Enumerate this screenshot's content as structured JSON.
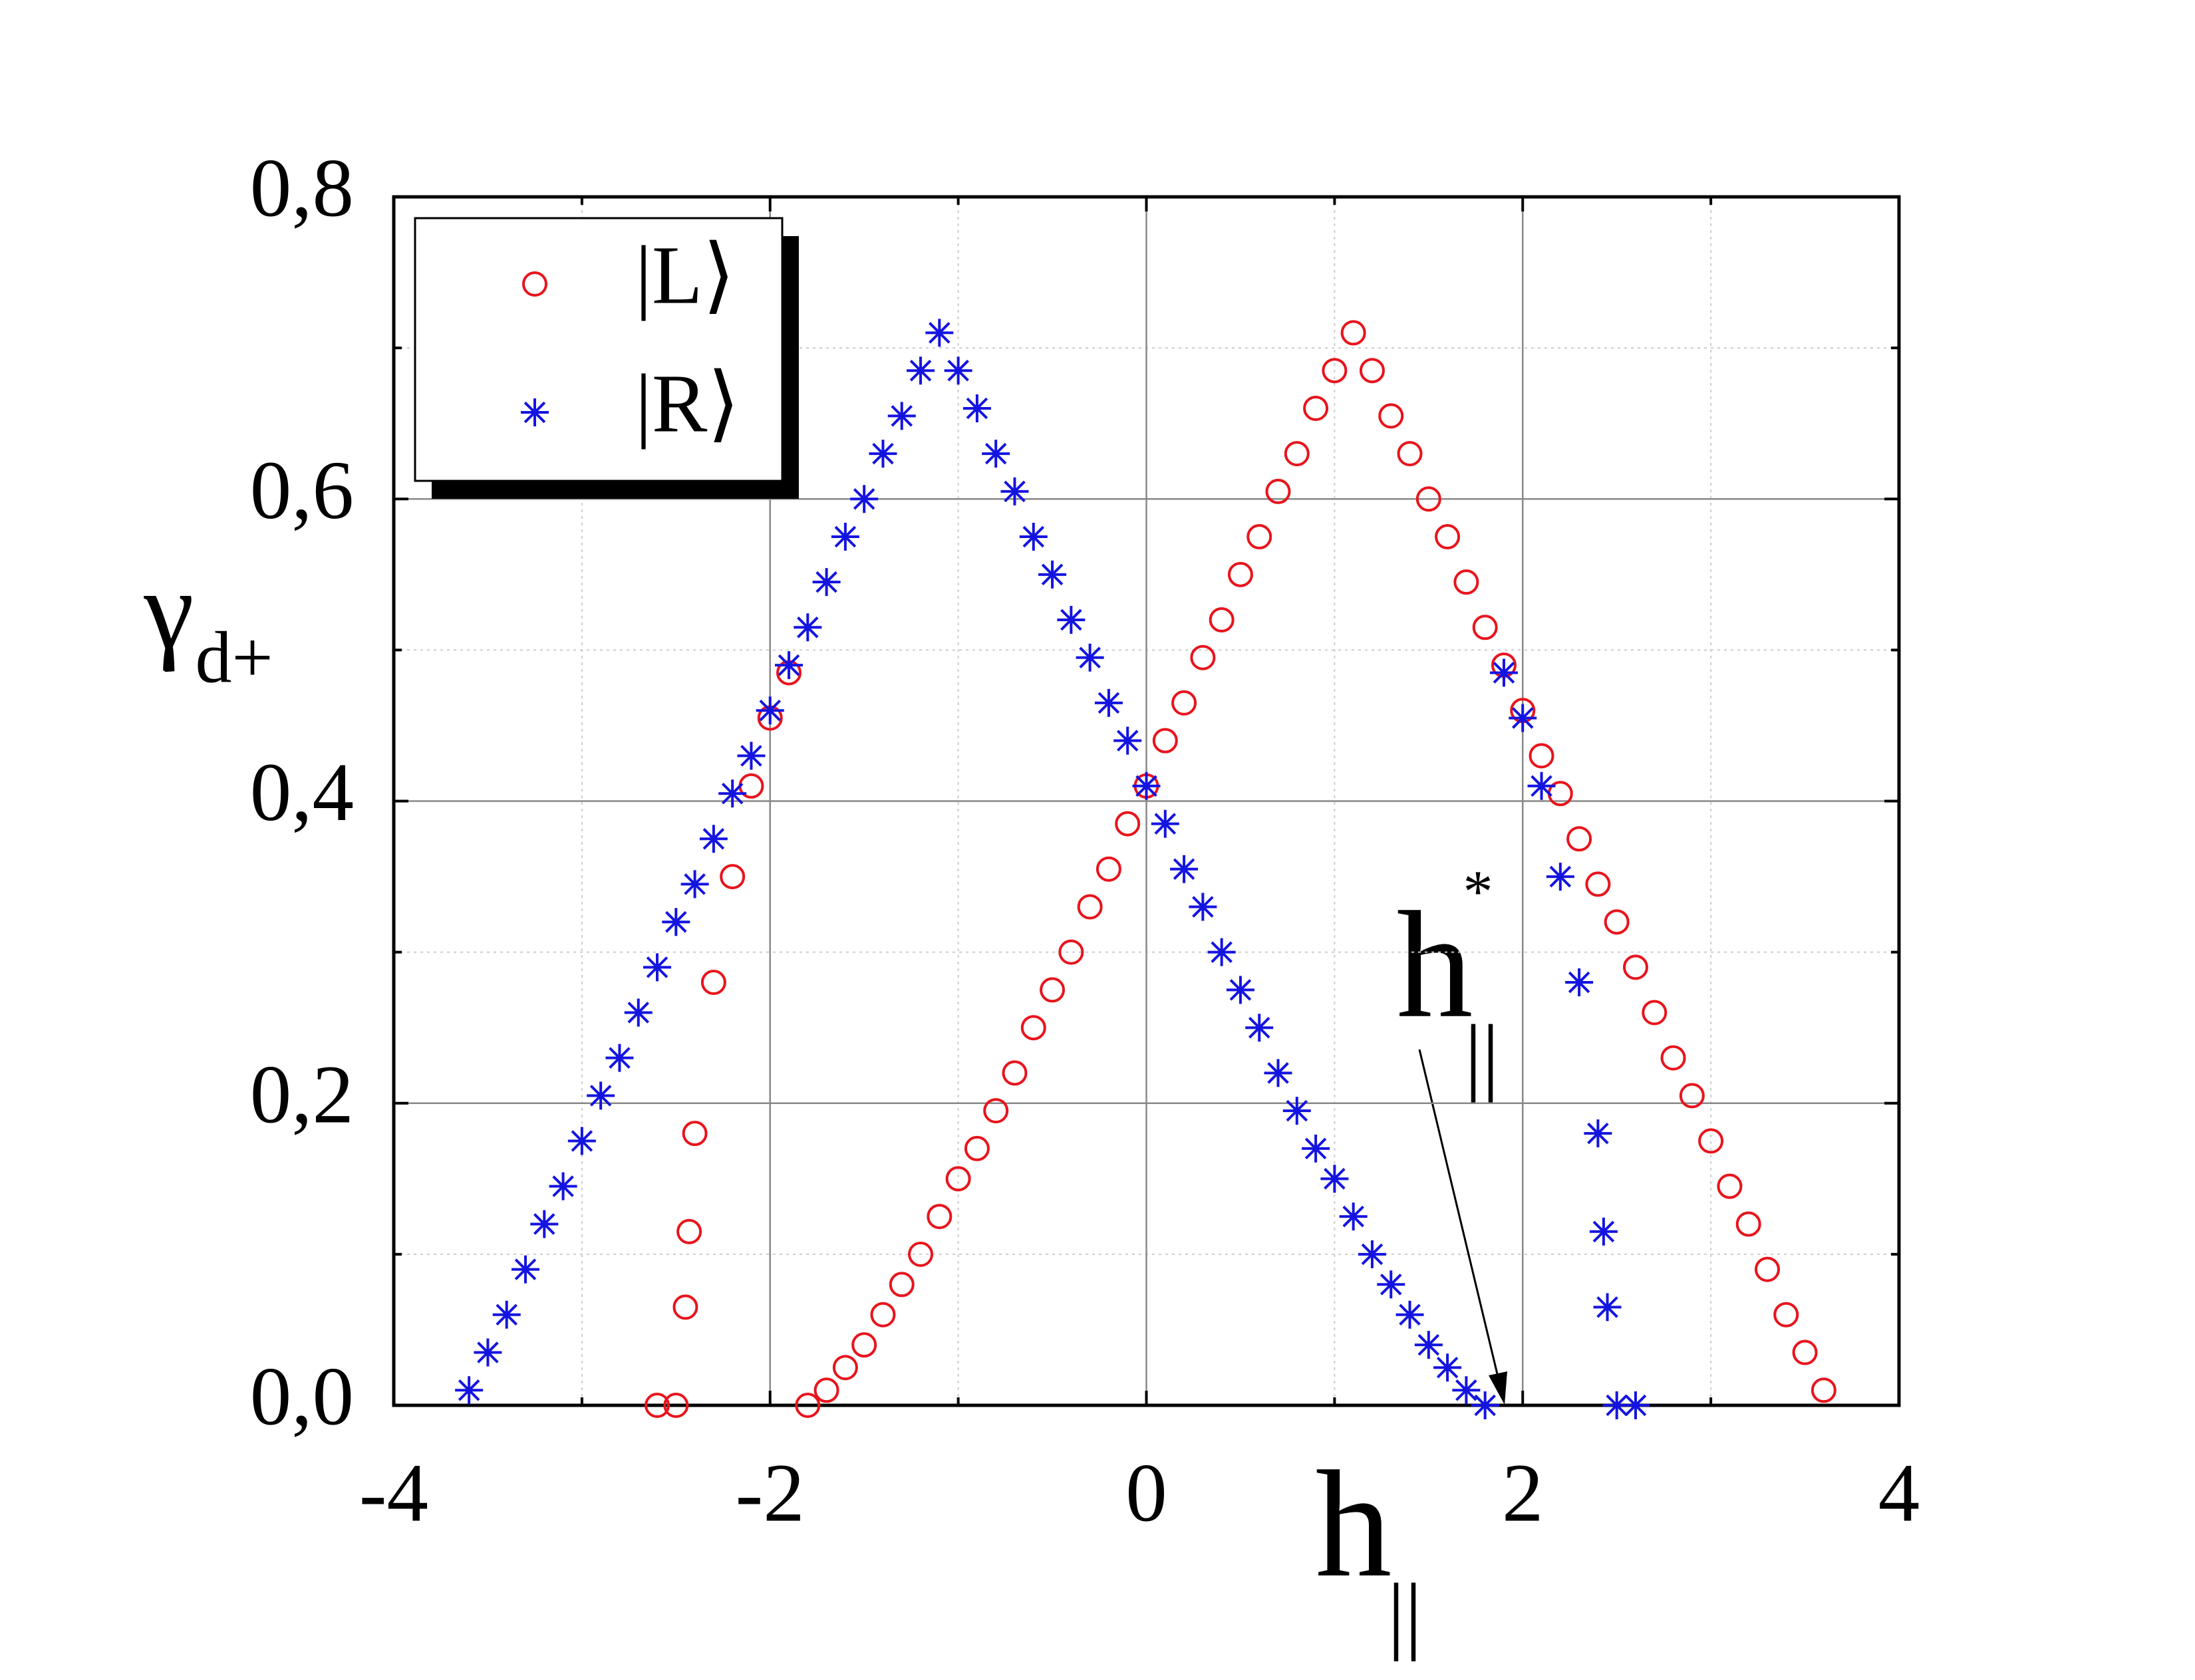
{
  "chart_data": {
    "type": "scatter",
    "xlabel": "h",
    "xlabel_sub": "||",
    "ylabel": "γ",
    "ylabel_sub": "d+",
    "annotation": {
      "text": "h",
      "sup": "*",
      "sub": "||"
    },
    "xlim": [
      -4,
      4
    ],
    "ylim": [
      0,
      0.8
    ],
    "xticks": [
      -4,
      -2,
      0,
      2,
      4
    ],
    "yticks": [
      {
        "value": 0,
        "label": "0,0"
      },
      {
        "value": 0.2,
        "label": "0,2"
      },
      {
        "value": 0.4,
        "label": "0,4"
      },
      {
        "value": 0.6,
        "label": "0,6"
      },
      {
        "value": 0.8,
        "label": "0,8"
      }
    ],
    "xminorticks": [
      -3,
      -1,
      1,
      3
    ],
    "yminorticks": [
      0.1,
      0.3,
      0.5,
      0.7
    ],
    "grid": true,
    "legend": "upper left",
    "series": [
      {
        "name": "|L⟩",
        "color": "#e8141c",
        "marker": "circle",
        "x": [
          -2.6,
          -2.5,
          -2.45,
          -2.43,
          -2.4,
          -2.3,
          -2.2,
          -2.1,
          -2.0,
          -1.9,
          -1.8,
          -1.7,
          -1.6,
          -1.5,
          -1.4,
          -1.3,
          -1.2,
          -1.1,
          -1.0,
          -0.9,
          -0.8,
          -0.7,
          -0.6,
          -0.5,
          -0.4,
          -0.3,
          -0.2,
          -0.1,
          0,
          0.1,
          0.2,
          0.3,
          0.4,
          0.5,
          0.6,
          0.7,
          0.8,
          0.9,
          1.0,
          1.1,
          1.2,
          1.3,
          1.4,
          1.5,
          1.6,
          1.7,
          1.8,
          1.9,
          2.0,
          2.1,
          2.2,
          2.3,
          2.4,
          2.5,
          2.6,
          2.7,
          2.8,
          2.9,
          3.0,
          3.1,
          3.2,
          3.3,
          3.4,
          3.5,
          3.6
        ],
        "y": [
          0.0,
          0.0,
          0.065,
          0.115,
          0.18,
          0.28,
          0.35,
          0.41,
          0.455,
          0.485,
          0.0,
          0.01,
          0.025,
          0.04,
          0.06,
          0.08,
          0.1,
          0.125,
          0.15,
          0.17,
          0.195,
          0.22,
          0.25,
          0.275,
          0.3,
          0.33,
          0.355,
          0.385,
          0.41,
          0.44,
          0.465,
          0.495,
          0.52,
          0.55,
          0.575,
          0.605,
          0.63,
          0.66,
          0.685,
          0.71,
          0.685,
          0.655,
          0.63,
          0.6,
          0.575,
          0.545,
          0.515,
          0.49,
          0.46,
          0.43,
          0.405,
          0.375,
          0.345,
          0.32,
          0.29,
          0.26,
          0.23,
          0.205,
          0.175,
          0.145,
          0.12,
          0.09,
          0.06,
          0.035,
          0.01
        ]
      },
      {
        "name": "|R⟩",
        "color": "#1414e0",
        "marker": "star",
        "x": [
          -3.6,
          -3.5,
          -3.4,
          -3.3,
          -3.2,
          -3.1,
          -3.0,
          -2.9,
          -2.8,
          -2.7,
          -2.6,
          -2.5,
          -2.4,
          -2.3,
          -2.2,
          -2.1,
          -2.0,
          -1.9,
          -1.8,
          -1.7,
          -1.6,
          -1.5,
          -1.4,
          -1.3,
          -1.2,
          -1.1,
          -1.0,
          -0.9,
          -0.8,
          -0.7,
          -0.6,
          -0.5,
          -0.4,
          -0.3,
          -0.2,
          -0.1,
          0,
          0.1,
          0.2,
          0.3,
          0.4,
          0.5,
          0.6,
          0.7,
          0.8,
          0.9,
          1.0,
          1.1,
          1.2,
          1.3,
          1.4,
          1.5,
          1.6,
          1.7,
          1.8,
          1.9,
          2.0,
          2.1,
          2.2,
          2.3,
          2.4,
          2.43,
          2.45,
          2.5,
          2.6
        ],
        "y": [
          0.01,
          0.035,
          0.06,
          0.09,
          0.12,
          0.145,
          0.175,
          0.205,
          0.23,
          0.26,
          0.29,
          0.32,
          0.345,
          0.375,
          0.405,
          0.43,
          0.46,
          0.49,
          0.515,
          0.545,
          0.575,
          0.6,
          0.63,
          0.655,
          0.685,
          0.71,
          0.685,
          0.66,
          0.63,
          0.605,
          0.575,
          0.55,
          0.52,
          0.495,
          0.465,
          0.44,
          0.41,
          0.385,
          0.355,
          0.33,
          0.3,
          0.275,
          0.25,
          0.22,
          0.195,
          0.17,
          0.15,
          0.125,
          0.1,
          0.08,
          0.06,
          0.04,
          0.025,
          0.01,
          0.0,
          0.485,
          0.455,
          0.41,
          0.35,
          0.28,
          0.18,
          0.115,
          0.065,
          0.0,
          0.0
        ]
      }
    ]
  }
}
